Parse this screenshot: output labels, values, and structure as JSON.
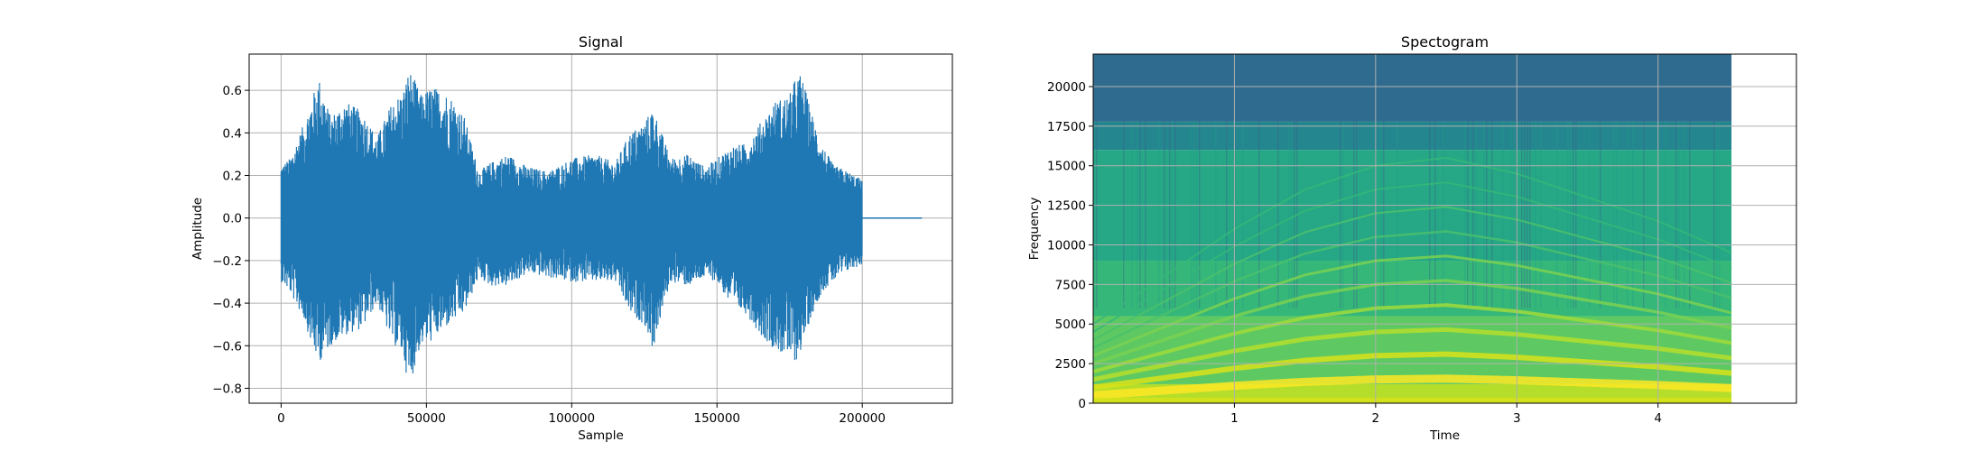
{
  "chart_data": [
    {
      "type": "line",
      "title": "Signal",
      "xlabel": "Sample",
      "ylabel": "Amplitude",
      "xlim": [
        -11000,
        231000
      ],
      "ylim": [
        -0.87,
        0.77
      ],
      "grid": true,
      "color": "#1f77b4",
      "x_ticks": [
        0,
        50000,
        100000,
        150000,
        200000
      ],
      "x_tick_labels": [
        "0",
        "50000",
        "100000",
        "150000",
        "200000"
      ],
      "y_ticks": [
        -0.8,
        -0.6,
        -0.4,
        -0.2,
        0.0,
        0.2,
        0.4,
        0.6
      ],
      "y_tick_labels": [
        "−0.8",
        "−0.6",
        "−0.4",
        "−0.2",
        "0.0",
        "0.2",
        "0.4",
        "0.6"
      ],
      "series": [
        {
          "description": "waveform amplitude envelope (max / min of samples)",
          "x": [
            0,
            3000,
            8000,
            11000,
            13000,
            17000,
            22000,
            28000,
            33000,
            38000,
            42000,
            44000,
            46000,
            48000,
            52000,
            58000,
            63000,
            68000,
            72000,
            78000,
            85000,
            92000,
            100000,
            108000,
            115000,
            120000,
            125000,
            128000,
            131000,
            134000,
            140000,
            146000,
            150000,
            155000,
            160000,
            165000,
            170000,
            175000,
            177000,
            179000,
            182000,
            186000,
            190000,
            195000,
            200000
          ],
          "upper": [
            0.25,
            0.28,
            0.45,
            0.58,
            0.66,
            0.48,
            0.55,
            0.5,
            0.38,
            0.54,
            0.6,
            0.7,
            0.65,
            0.58,
            0.62,
            0.58,
            0.48,
            0.22,
            0.26,
            0.3,
            0.24,
            0.22,
            0.28,
            0.3,
            0.26,
            0.4,
            0.45,
            0.52,
            0.4,
            0.28,
            0.3,
            0.24,
            0.28,
            0.34,
            0.35,
            0.45,
            0.55,
            0.58,
            0.66,
            0.68,
            0.52,
            0.35,
            0.25,
            0.22,
            0.18
          ],
          "lower": [
            -0.3,
            -0.35,
            -0.48,
            -0.62,
            -0.68,
            -0.6,
            -0.55,
            -0.52,
            -0.4,
            -0.58,
            -0.65,
            -0.8,
            -0.7,
            -0.6,
            -0.58,
            -0.5,
            -0.45,
            -0.28,
            -0.32,
            -0.32,
            -0.26,
            -0.28,
            -0.3,
            -0.3,
            -0.3,
            -0.45,
            -0.5,
            -0.62,
            -0.45,
            -0.3,
            -0.32,
            -0.28,
            -0.3,
            -0.42,
            -0.45,
            -0.55,
            -0.62,
            -0.66,
            -0.68,
            -0.62,
            -0.48,
            -0.35,
            -0.3,
            -0.25,
            -0.22
          ]
        },
        {
          "description": "silent tail",
          "x": [
            200000,
            220500
          ],
          "y": [
            0,
            0
          ]
        }
      ]
    },
    {
      "type": "heatmap",
      "title": "Spectogram",
      "xlabel": "Time",
      "ylabel": "Frequency",
      "xlim": [
        0,
        4.98
      ],
      "ylim": [
        0,
        22050
      ],
      "data_xmax": 4.52,
      "grid": true,
      "colormap": "viridis",
      "x_ticks": [
        1,
        2,
        3,
        4
      ],
      "x_tick_labels": [
        "1",
        "2",
        "3",
        "4"
      ],
      "y_ticks": [
        0,
        2500,
        5000,
        7500,
        10000,
        12500,
        15000,
        17500,
        20000
      ],
      "y_tick_labels": [
        "0",
        "2500",
        "5000",
        "7500",
        "10000",
        "12500",
        "15000",
        "17500",
        "20000"
      ],
      "fundamental_time": [
        0,
        0.5,
        1,
        1.5,
        2,
        2.5,
        3,
        3.5,
        4,
        4.52
      ],
      "fundamental_freq": [
        500,
        800,
        1100,
        1350,
        1500,
        1550,
        1450,
        1300,
        1150,
        950
      ],
      "bands": [
        {
          "from": 0,
          "to": 1200,
          "color": "#b5de2b"
        },
        {
          "from": 1200,
          "to": 5500,
          "color": "#5ec962"
        },
        {
          "from": 5500,
          "to": 9000,
          "color": "#35b779"
        },
        {
          "from": 9000,
          "to": 16000,
          "color": "#26a785"
        },
        {
          "from": 16000,
          "to": 17800,
          "color": "#24868e"
        },
        {
          "from": 17800,
          "to": 22050,
          "color": "#2f6b8e"
        }
      ]
    }
  ]
}
